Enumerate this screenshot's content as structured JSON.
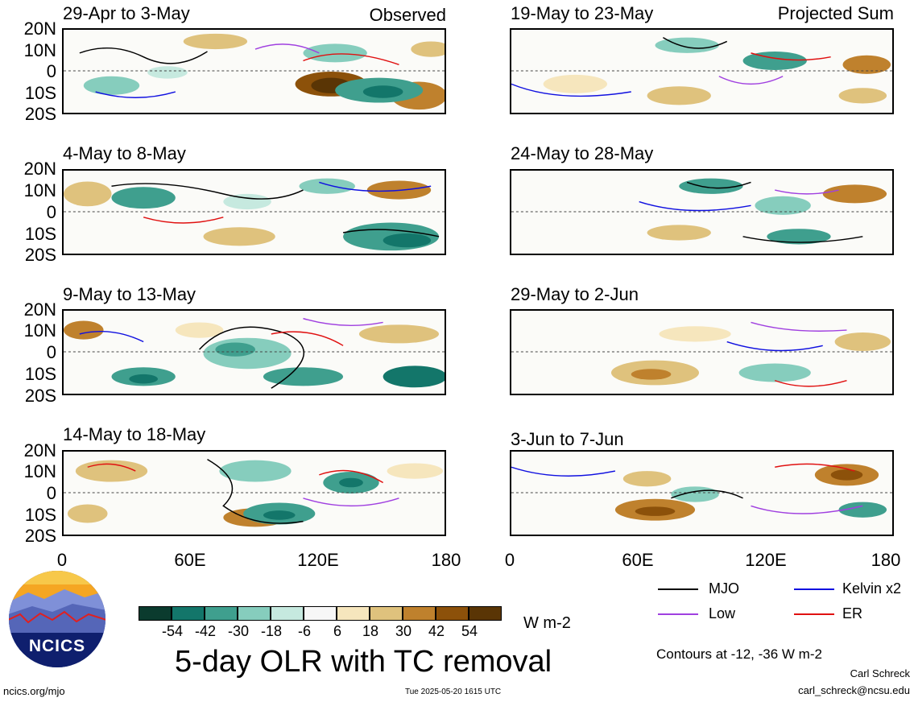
{
  "panels": {
    "left": [
      {
        "title": "29-Apr to 3-May",
        "tag": "Observed"
      },
      {
        "title": "4-May to 8-May",
        "tag": ""
      },
      {
        "title": "9-May to 13-May",
        "tag": ""
      },
      {
        "title": "14-May to 18-May",
        "tag": ""
      }
    ],
    "right": [
      {
        "title": "19-May to 23-May",
        "tag": "Projected Sum"
      },
      {
        "title": "24-May to 28-May",
        "tag": ""
      },
      {
        "title": "29-May to 2-Jun",
        "tag": ""
      },
      {
        "title": "3-Jun to 7-Jun",
        "tag": ""
      }
    ]
  },
  "axes": {
    "lat_labels": [
      "20N",
      "10N",
      "0",
      "10S",
      "20S"
    ],
    "lon_labels": [
      "0",
      "60E",
      "120E",
      "180"
    ]
  },
  "colorbar": {
    "colors": [
      "#0b3b2e",
      "#13766a",
      "#3f9f8e",
      "#86cdbd",
      "#c6e9df",
      "#f7f7f7",
      "#f6e6bd",
      "#dfc27d",
      "#bf812d",
      "#8c510a",
      "#5a3505"
    ],
    "ticks": [
      "-54",
      "-42",
      "-30",
      "-18",
      "-6",
      "6",
      "18",
      "30",
      "42",
      "54"
    ],
    "units": "W m-2"
  },
  "legend": {
    "items": [
      {
        "label": "MJO",
        "color": "#000000"
      },
      {
        "label": "Kelvin x2",
        "color": "#1010e0"
      },
      {
        "label": "Low",
        "color": "#a040e0"
      },
      {
        "label": "ER",
        "color": "#e01010"
      }
    ],
    "contours_note": "Contours at -12, -36 W m-2"
  },
  "footer": {
    "title": "5-day OLR with TC removal",
    "logo_text": "NCICS",
    "site": "ncics.org/mjo",
    "timestamp": "Tue 2025-05-20 1615 UTC",
    "author": "Carl Schreck",
    "email": "carl_schreck@ncsu.edu"
  }
}
